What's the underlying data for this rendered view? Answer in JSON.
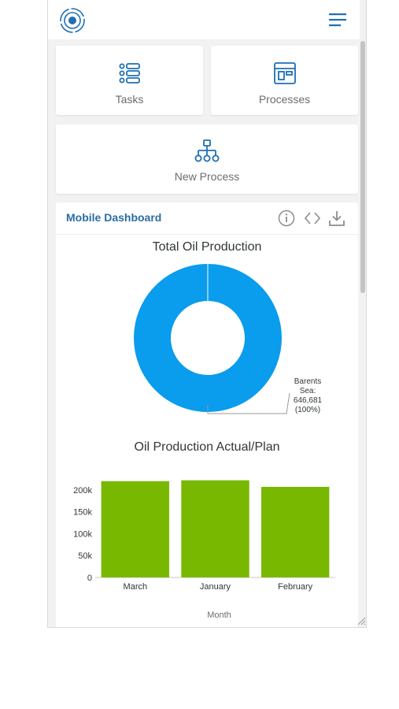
{
  "tiles": {
    "tasks": "Tasks",
    "processes": "Processes",
    "new_process": "New Process"
  },
  "dashboard": {
    "title": "Mobile Dashboard"
  },
  "colors": {
    "accent": "#1f6fb2",
    "title": "#2b6da3",
    "donut": "#0a9ced",
    "bar": "#78b900"
  },
  "icons": [
    "app-logo-icon",
    "hamburger-menu-icon",
    "task-list-icon",
    "processes-icon",
    "org-chart-icon",
    "info-icon",
    "code-icon",
    "download-icon"
  ],
  "chart_data": [
    {
      "type": "pie",
      "title": "Total Oil Production",
      "labels": [
        "Barents Sea"
      ],
      "values": [
        646681
      ],
      "data_labels": [
        "Barents",
        "Sea:",
        "646,681",
        "(100%)"
      ],
      "donut": true
    },
    {
      "type": "bar",
      "title": "Oil Production Actual/Plan",
      "categories": [
        "March",
        "January",
        "February"
      ],
      "values": [
        220000,
        222000,
        207000
      ],
      "xlabel": "Month",
      "ylabel": "",
      "ylim": [
        0,
        225000
      ],
      "y_ticks": [
        "0",
        "50k",
        "100k",
        "150k",
        "200k"
      ],
      "y_tick_values": [
        0,
        50000,
        100000,
        150000,
        200000
      ]
    }
  ]
}
